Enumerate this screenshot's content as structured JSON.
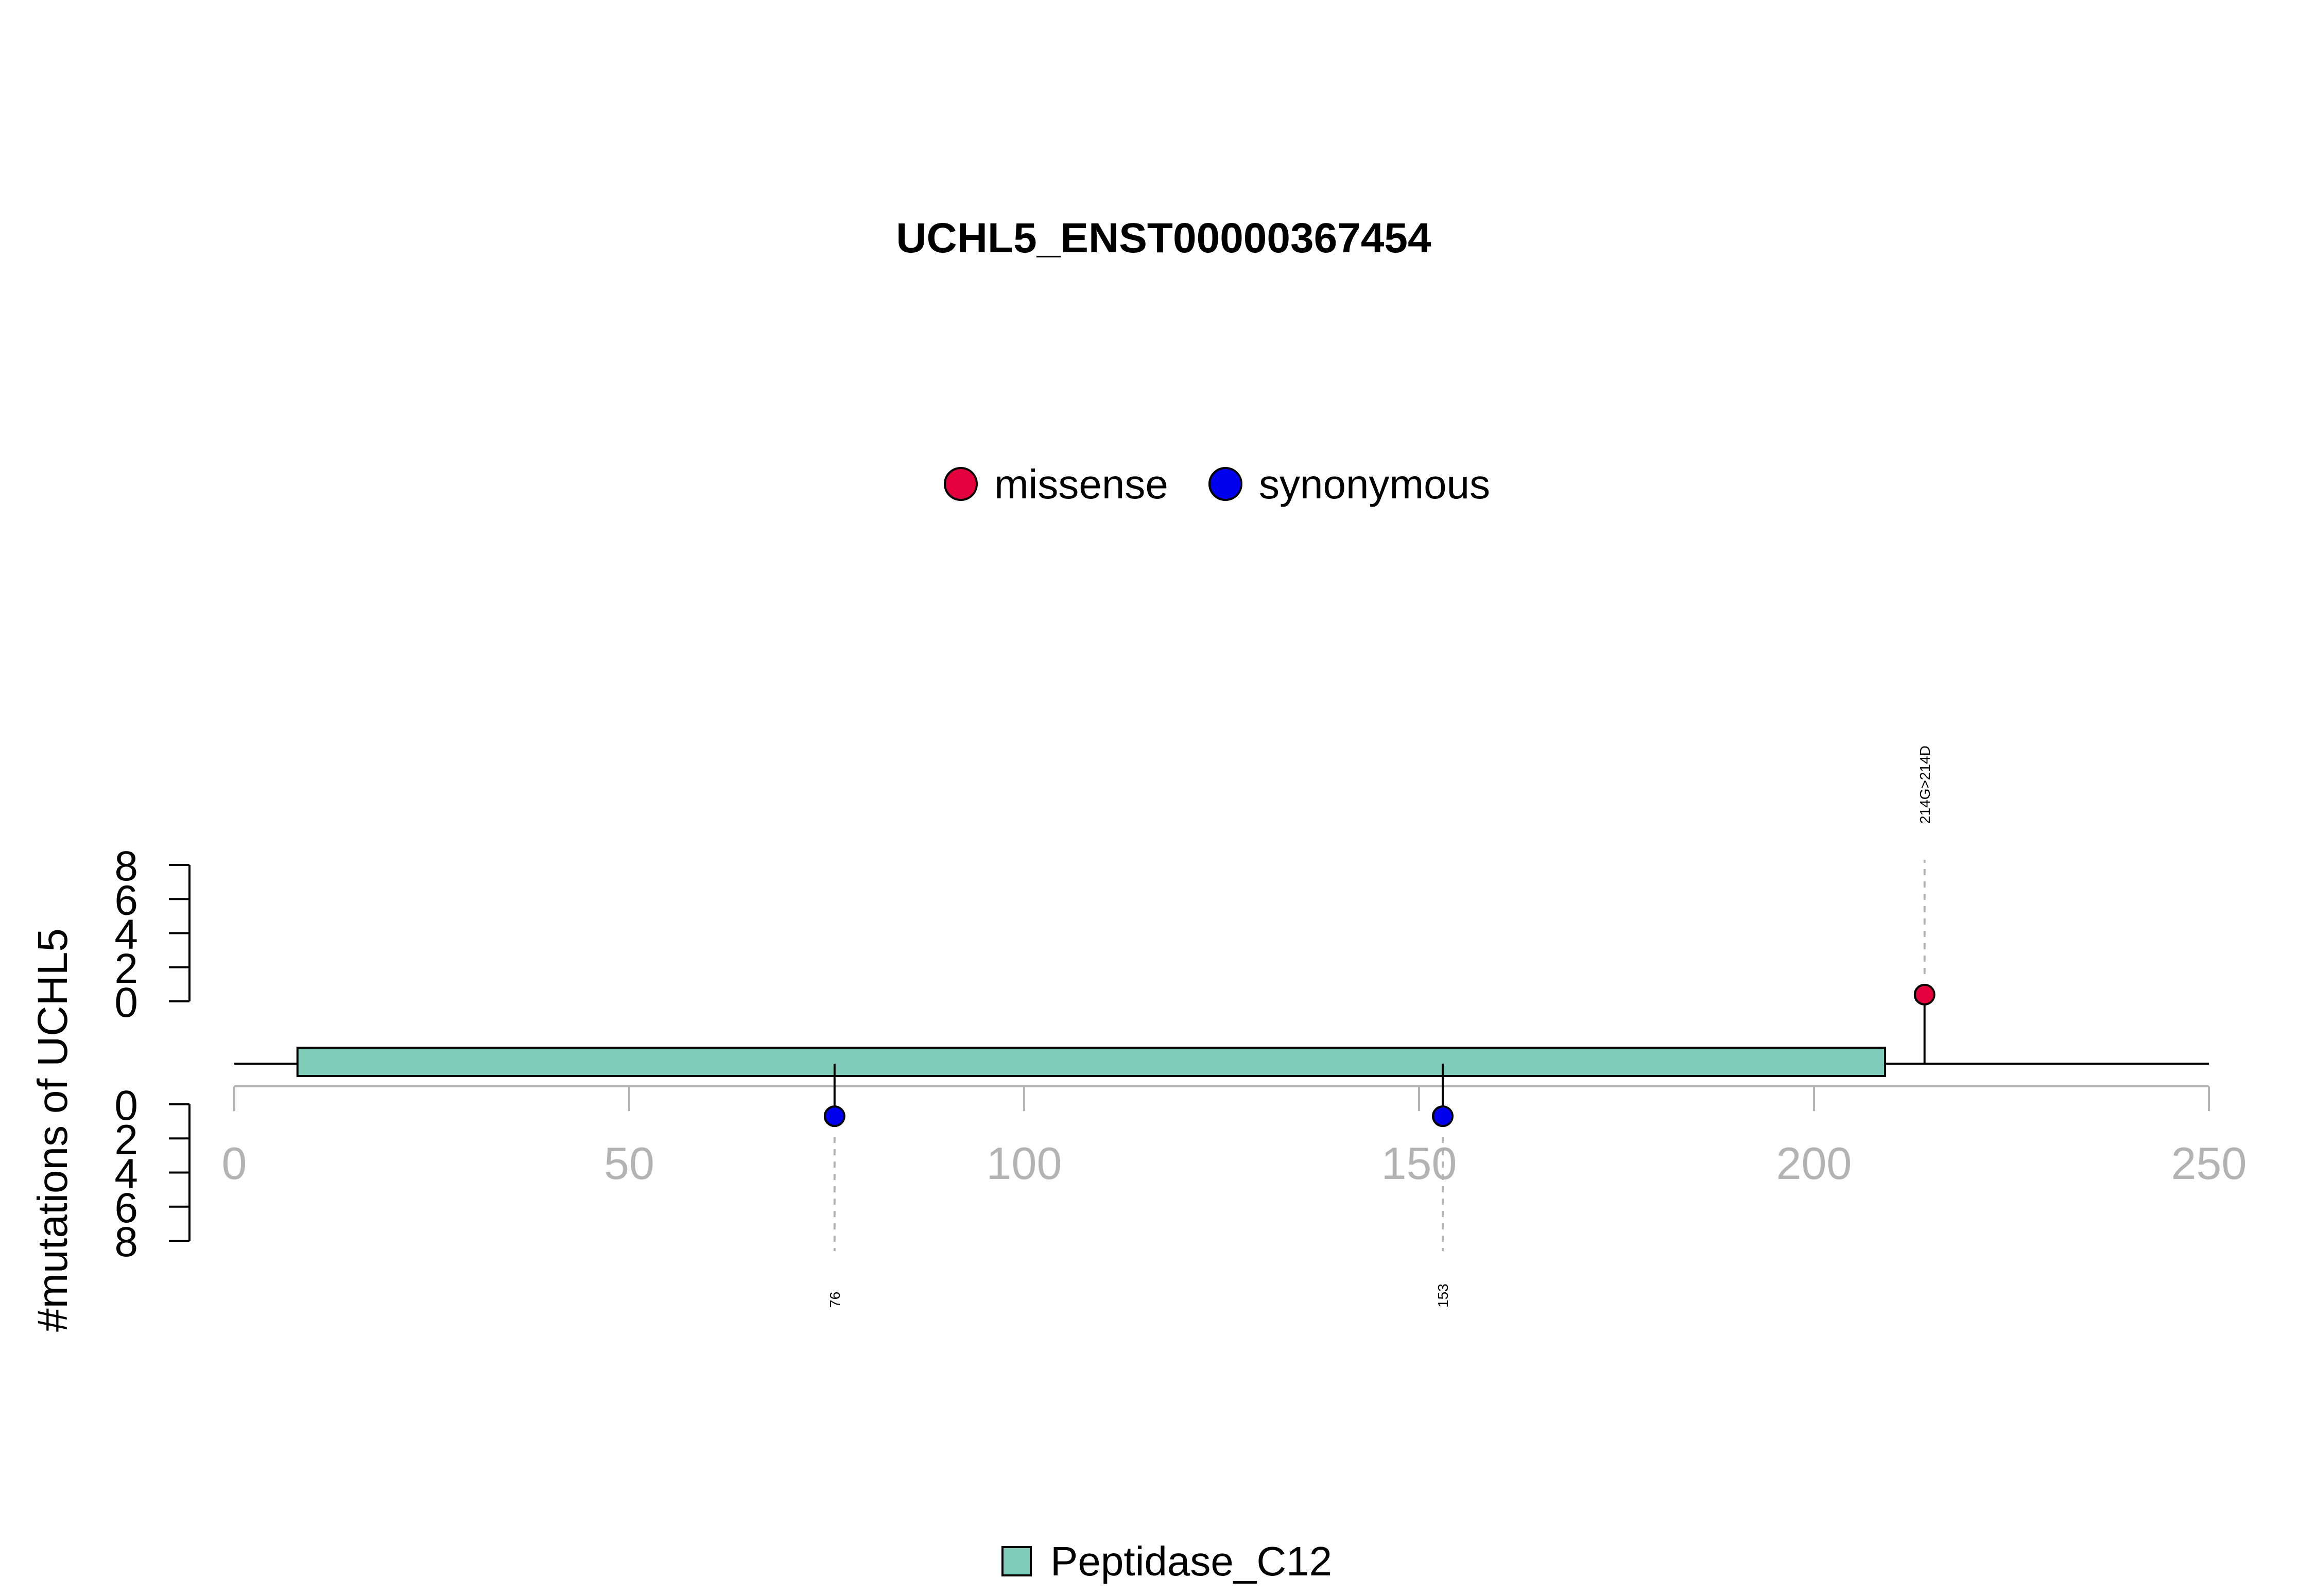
{
  "chart_data": {
    "type": "lollipop",
    "title": "UCHL5_ENST00000367454",
    "ylabel": "#mutations of UCHL5",
    "xlim": [
      0,
      250
    ],
    "x_ticks": [
      "0",
      "50",
      "100",
      "150",
      "200",
      "250"
    ],
    "ylim_top": [
      0,
      8
    ],
    "ylim_bottom": [
      0,
      8
    ],
    "y_ticks": [
      "0",
      "2",
      "4",
      "6",
      "8"
    ],
    "protein_length": 250,
    "mutation_legend": [
      {
        "name": "missense",
        "color": "#e3003c"
      },
      {
        "name": "synonymous",
        "color": "#0000ee"
      }
    ],
    "domain_legend": [
      {
        "name": "Peptidase_C12",
        "color": "#7fcbb9"
      }
    ],
    "domains": [
      {
        "name": "Peptidase_C12",
        "start": 8,
        "end": 209,
        "color": "#7fcbb9"
      }
    ],
    "mutations": [
      {
        "position": 214,
        "count": 1,
        "type": "missense",
        "side": "top",
        "label": "214G>214D"
      },
      {
        "position": 76,
        "count": 1,
        "type": "synonymous",
        "side": "bottom",
        "label": "76"
      },
      {
        "position": 153,
        "count": 1,
        "type": "synonymous",
        "side": "bottom",
        "label": "153"
      }
    ]
  }
}
